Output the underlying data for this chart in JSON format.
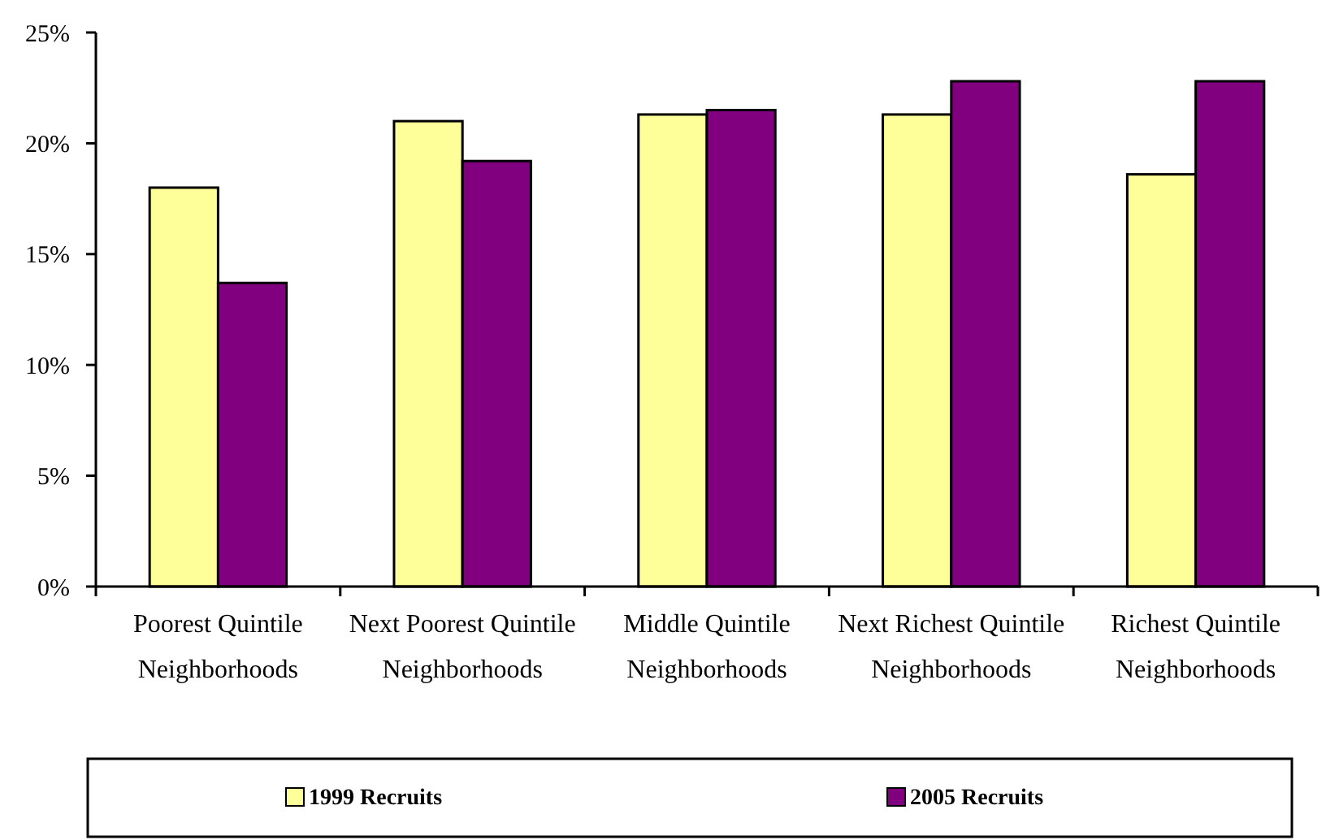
{
  "chart_data": {
    "type": "bar",
    "categories": [
      "Poorest Quintile Neighborhoods",
      "Next Poorest Quintile Neighborhoods",
      "Middle Quintile Neighborhoods",
      "Next Richest Quintile Neighborhoods",
      "Richest Quintile Neighborhoods"
    ],
    "series": [
      {
        "name": "1999 Recruits",
        "color": "#ffff99",
        "values": [
          18.0,
          21.0,
          21.3,
          21.3,
          18.6
        ]
      },
      {
        "name": "2005 Recruits",
        "color": "#800080",
        "values": [
          13.7,
          19.2,
          21.5,
          22.8,
          22.8
        ]
      }
    ],
    "ylim": [
      0,
      25
    ],
    "yticks": [
      {
        "value": 0,
        "label": "0%"
      },
      {
        "value": 5,
        "label": "5%"
      },
      {
        "value": 10,
        "label": "10%"
      },
      {
        "value": 15,
        "label": "15%"
      },
      {
        "value": 20,
        "label": "20%"
      },
      {
        "value": 25,
        "label": "25%"
      }
    ],
    "grid": false,
    "legend": "bottom"
  }
}
